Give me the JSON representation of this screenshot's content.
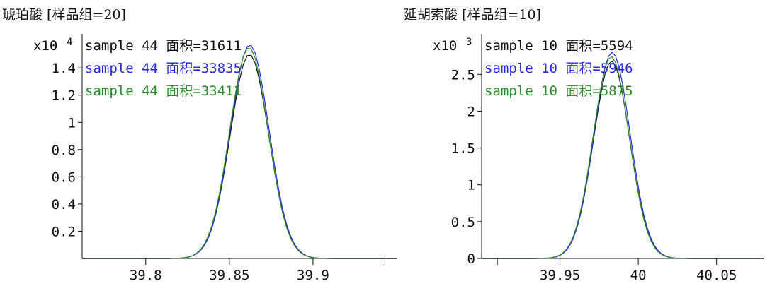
{
  "chart_data": [
    {
      "type": "line",
      "title": "琥珀酸 [样品组=20]",
      "y_multiplier": "x10",
      "y_exponent": "4",
      "xlim": [
        39.762,
        39.95
      ],
      "ylim": [
        0,
        1.65
      ],
      "x_ticks": [
        39.8,
        39.85,
        39.9
      ],
      "x_tick_labels": [
        "39.8",
        "39.85",
        "39.9"
      ],
      "x_minor_ticks": [
        39.8,
        39.85,
        39.9,
        39.943
      ],
      "y_ticks": [
        0.2,
        0.4,
        0.6,
        0.8,
        1,
        1.2,
        1.4
      ],
      "y_tick_labels": [
        "0.2",
        "0.4",
        "0.6",
        "0.8",
        "1",
        "1.2",
        "1.4"
      ],
      "peak_center": 39.862,
      "peak_width": 0.0115,
      "series": [
        {
          "name": "sample 44 面积=31611",
          "color": "#111111",
          "peak": 1.5,
          "offset": 0.0
        },
        {
          "name": "sample 44 面积=33835",
          "color": "#2a2ad6",
          "peak": 1.57,
          "offset": 0.0002
        },
        {
          "name": "sample 44 面积=33411",
          "color": "#2a8a2a",
          "peak": 1.55,
          "offset": -0.0003
        }
      ]
    },
    {
      "type": "line",
      "title": "延胡索酸 [样品组=10]",
      "y_multiplier": "x10",
      "y_exponent": "3",
      "xlim": [
        39.9,
        40.08
      ],
      "ylim": [
        0,
        3.05
      ],
      "x_ticks": [
        39.95,
        40,
        40.05
      ],
      "x_tick_labels": [
        "39.95",
        "40",
        "40.05"
      ],
      "x_minor_ticks": [
        39.91,
        39.95,
        40,
        40.05
      ],
      "y_ticks": [
        0,
        0.5,
        1,
        1.5,
        2,
        2.5
      ],
      "y_tick_labels": [
        "0",
        "0.5",
        "1",
        "1.5",
        "2",
        "2.5"
      ],
      "peak_center": 39.983,
      "peak_width": 0.0115,
      "series": [
        {
          "name": "sample 10 面积=5594",
          "color": "#111111",
          "peak": 2.68,
          "offset": 0.0
        },
        {
          "name": "sample 10 面积=5946",
          "color": "#2a2ad6",
          "peak": 2.8,
          "offset": 0.0003
        },
        {
          "name": "sample 10 面积=5875",
          "color": "#2a8a2a",
          "peak": 2.74,
          "offset": -0.0003
        }
      ]
    }
  ]
}
